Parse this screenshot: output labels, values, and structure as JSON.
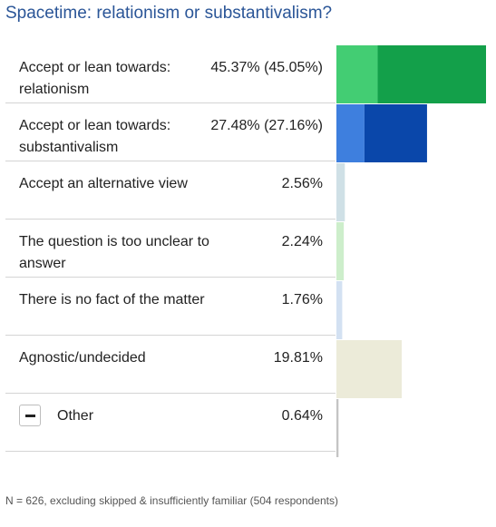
{
  "chart_data": {
    "type": "bar",
    "orientation": "horizontal",
    "title": "Spacetime: relationism or substantivalism?",
    "footnote": "N = 626, excluding skipped & insufficiently familiar (504 respondents)",
    "rows": [
      {
        "label": "Accept or lean towards: relationism",
        "value_text": "45.37% (45.05%)",
        "segments": [
          {
            "value": 12.5,
            "color": "#43cd73"
          },
          {
            "value": 32.87,
            "color": "#13a04a"
          }
        ]
      },
      {
        "label": "Accept or lean towards: substantivalism",
        "value_text": "27.48% (27.16%)",
        "segments": [
          {
            "value": 8.5,
            "color": "#3e7fde"
          },
          {
            "value": 18.98,
            "color": "#0a47aa"
          }
        ]
      },
      {
        "label": "Accept an alternative view",
        "value_text": "2.56%",
        "segments": [
          {
            "value": 2.56,
            "color": "#cfe0e6"
          }
        ]
      },
      {
        "label": "The question is too unclear to answer",
        "value_text": "2.24%",
        "segments": [
          {
            "value": 2.24,
            "color": "#cdeecb"
          }
        ]
      },
      {
        "label": "There is no fact of the matter",
        "value_text": "1.76%",
        "segments": [
          {
            "value": 1.76,
            "color": "#d3e1f2"
          }
        ]
      },
      {
        "label": "Agnostic/undecided",
        "value_text": "19.81%",
        "segments": [
          {
            "value": 19.81,
            "color": "#ecebd9"
          }
        ]
      },
      {
        "label": "Other",
        "value_text": "0.64%",
        "expandable": true,
        "segments": [
          {
            "value": 0.64,
            "color": "#c4c4c4"
          }
        ]
      }
    ],
    "xlim": [
      0,
      45.37
    ]
  }
}
